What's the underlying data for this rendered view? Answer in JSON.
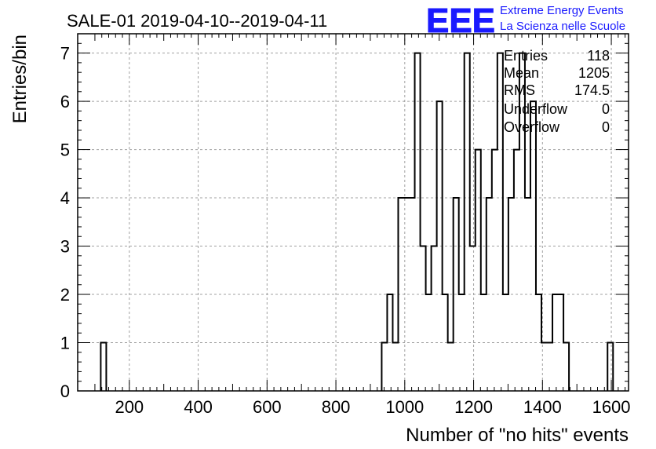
{
  "chart_data": {
    "type": "histogram",
    "title": "SALE-01 2019-04-10--2019-04-11",
    "xlabel": "Number of \"no hits\" events",
    "ylabel": "Entries/bin",
    "xlim": [
      50,
      1650
    ],
    "ylim": [
      0,
      7.4
    ],
    "grid": true,
    "bin_width": 16,
    "x_ticks": [
      200,
      400,
      600,
      800,
      1000,
      1200,
      1400,
      1600
    ],
    "y_ticks": [
      0,
      1,
      2,
      3,
      4,
      5,
      6,
      7
    ],
    "bins": [
      {
        "x_low": 117,
        "x_high": 133,
        "count": 1
      },
      {
        "x_low": 933,
        "x_high": 949,
        "count": 1
      },
      {
        "x_low": 949,
        "x_high": 965,
        "count": 2
      },
      {
        "x_low": 965,
        "x_high": 981,
        "count": 1
      },
      {
        "x_low": 981,
        "x_high": 997,
        "count": 4
      },
      {
        "x_low": 997,
        "x_high": 1013,
        "count": 4
      },
      {
        "x_low": 1013,
        "x_high": 1029,
        "count": 4
      },
      {
        "x_low": 1029,
        "x_high": 1045,
        "count": 7
      },
      {
        "x_low": 1045,
        "x_high": 1061,
        "count": 3
      },
      {
        "x_low": 1061,
        "x_high": 1077,
        "count": 2
      },
      {
        "x_low": 1077,
        "x_high": 1093,
        "count": 3
      },
      {
        "x_low": 1093,
        "x_high": 1109,
        "count": 6
      },
      {
        "x_low": 1109,
        "x_high": 1125,
        "count": 2
      },
      {
        "x_low": 1125,
        "x_high": 1141,
        "count": 1
      },
      {
        "x_low": 1141,
        "x_high": 1157,
        "count": 4
      },
      {
        "x_low": 1157,
        "x_high": 1173,
        "count": 2
      },
      {
        "x_low": 1173,
        "x_high": 1189,
        "count": 7
      },
      {
        "x_low": 1189,
        "x_high": 1205,
        "count": 3
      },
      {
        "x_low": 1205,
        "x_high": 1221,
        "count": 5
      },
      {
        "x_low": 1221,
        "x_high": 1237,
        "count": 2
      },
      {
        "x_low": 1237,
        "x_high": 1253,
        "count": 4
      },
      {
        "x_low": 1253,
        "x_high": 1269,
        "count": 5
      },
      {
        "x_low": 1269,
        "x_high": 1285,
        "count": 7
      },
      {
        "x_low": 1285,
        "x_high": 1301,
        "count": 2
      },
      {
        "x_low": 1301,
        "x_high": 1317,
        "count": 4
      },
      {
        "x_low": 1317,
        "x_high": 1333,
        "count": 5
      },
      {
        "x_low": 1333,
        "x_high": 1349,
        "count": 7
      },
      {
        "x_low": 1349,
        "x_high": 1365,
        "count": 4
      },
      {
        "x_low": 1365,
        "x_high": 1381,
        "count": 6
      },
      {
        "x_low": 1381,
        "x_high": 1397,
        "count": 2
      },
      {
        "x_low": 1397,
        "x_high": 1413,
        "count": 1
      },
      {
        "x_low": 1413,
        "x_high": 1429,
        "count": 1
      },
      {
        "x_low": 1429,
        "x_high": 1445,
        "count": 2
      },
      {
        "x_low": 1445,
        "x_high": 1461,
        "count": 2
      },
      {
        "x_low": 1461,
        "x_high": 1477,
        "count": 1
      },
      {
        "x_low": 1589,
        "x_high": 1605,
        "count": 1
      }
    ],
    "stats": [
      {
        "label": "Entries",
        "value": "118"
      },
      {
        "label": "Mean",
        "value": "1205"
      },
      {
        "label": "RMS",
        "value": "174.5"
      },
      {
        "label": "Underflow",
        "value": "0"
      },
      {
        "label": "Overflow",
        "value": "0"
      }
    ]
  },
  "logo": {
    "mark": "EEE",
    "line1": "Extreme Energy Events",
    "line2": "La Scienza nelle Scuole",
    "color": "#1a1aff"
  },
  "colors": {
    "line": "#000000",
    "grid": "#a0a0a0",
    "background": "#ffffff"
  }
}
